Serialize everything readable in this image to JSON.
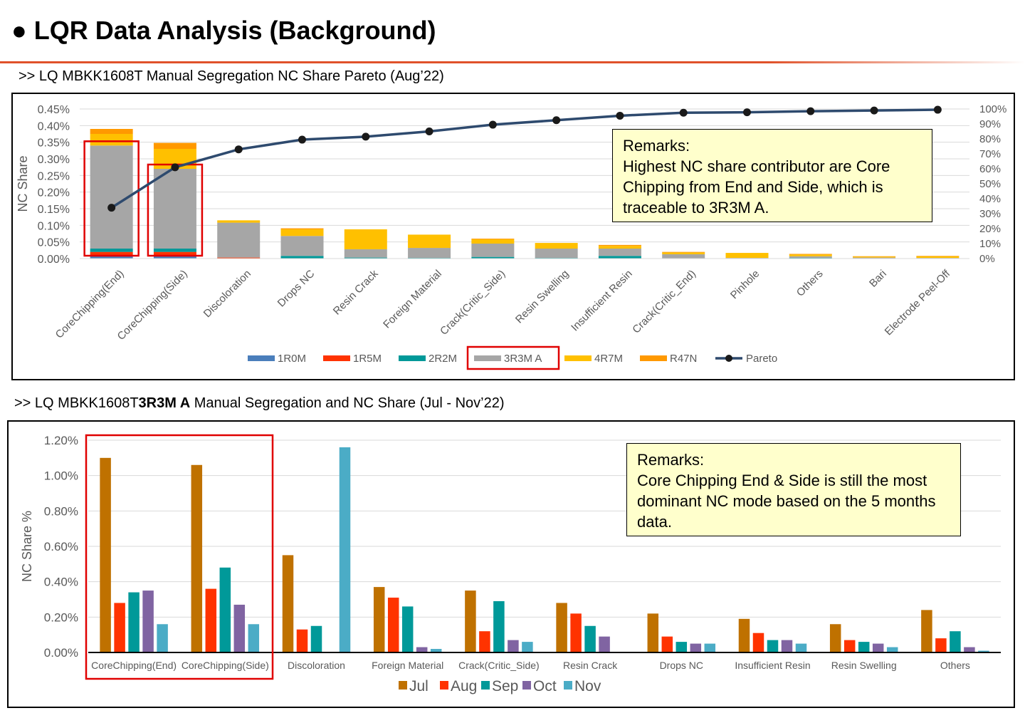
{
  "page": {
    "title": "● LQR Data Analysis (Background)",
    "subtitle1": ">> LQ MBKK1608T Manual Segregation NC Share Pareto (Aug’22)",
    "subtitle2_prefix": ">> LQ MBKK1608T",
    "subtitle2_bold": "3R3M A",
    "subtitle2_suffix": " Manual Segregation and NC Share (Jul - Nov’22)"
  },
  "chart_data": [
    {
      "type": "bar",
      "stacked": true,
      "categories": [
        "CoreChipping(End)",
        "CoreChipping(Side)",
        "Discoloration",
        "Drops NC",
        "Resin Crack",
        "Foreign Material",
        "Crack(Critic_Side)",
        "Resin Swelling",
        "Insufficient Resin",
        "Crack(Critic_End)",
        "Pinhole",
        "Others",
        "Bari",
        "Electrode Peel-Off"
      ],
      "series": [
        {
          "name": "1R0M",
          "color": "#4a7ebb",
          "values": [
            0.0001,
            0.0001,
            0,
            0,
            0,
            0,
            0,
            0,
            0,
            0,
            0,
            0,
            0,
            0
          ]
        },
        {
          "name": "1R5M",
          "color": "#ff3300",
          "values": [
            0.0001,
            0.0001,
            3e-05,
            0,
            0,
            0,
            0,
            0,
            0,
            0,
            0,
            0,
            0,
            0
          ]
        },
        {
          "name": "2R2M",
          "color": "#009999",
          "values": [
            0.0001,
            0.0001,
            0,
            8e-05,
            3e-05,
            2e-05,
            5e-05,
            2e-05,
            8e-05,
            1e-05,
            0,
            2e-05,
            0,
            0
          ]
        },
        {
          "name": "3R3M  A",
          "color": "#a6a6a6",
          "values": [
            0.0031,
            0.0024,
            0.00105,
            0.0006,
            0.00025,
            0.0003,
            0.0004,
            0.00028,
            0.00022,
            0.00012,
            2e-05,
            5e-05,
            3e-05,
            2e-05
          ]
        },
        {
          "name": "4R7M",
          "color": "#ffc000",
          "values": [
            0.00035,
            0.0006,
            7e-05,
            0.0002,
            0.0006,
            0.0004,
            0.00013,
            0.00017,
            8e-05,
            5e-05,
            0.00015,
            5e-05,
            3e-05,
            5e-05
          ]
        },
        {
          "name": "R47N",
          "color": "#ff9900",
          "values": [
            0.00015,
            0.00018,
            0,
            3e-05,
            0,
            0,
            2e-05,
            0,
            3e-05,
            2e-05,
            0,
            2e-05,
            1e-05,
            1e-05
          ]
        }
      ],
      "line_series": {
        "name": "Pareto",
        "color": "#2e4a6e",
        "axis": "right",
        "values": [
          0.34,
          0.61,
          0.73,
          0.795,
          0.815,
          0.85,
          0.895,
          0.925,
          0.955,
          0.975,
          0.978,
          0.985,
          0.99,
          0.995
        ]
      },
      "ylabel": "NC Share",
      "ylim": [
        0,
        0.0045
      ],
      "yticks": [
        "0.00%",
        "0.05%",
        "0.10%",
        "0.15%",
        "0.20%",
        "0.25%",
        "0.30%",
        "0.35%",
        "0.40%",
        "0.45%"
      ],
      "y2lim": [
        0,
        1
      ],
      "y2ticks": [
        "0%",
        "10%",
        "20%",
        "30%",
        "40%",
        "50%",
        "60%",
        "70%",
        "80%",
        "90%",
        "100%"
      ],
      "legend_position": "bottom",
      "highlight_legend": "3R3M  A",
      "highlight_categories": [
        0,
        1
      ],
      "remark": "Remarks:\nHighest NC share contributor are Core Chipping from End and Side, which is traceable to 3R3M A."
    },
    {
      "type": "bar",
      "categories": [
        "CoreChipping(End)",
        "CoreChipping(Side)",
        "Discoloration",
        "Foreign Material",
        "Crack(Critic_Side)",
        "Resin Crack",
        "Drops NC",
        "Insufficient Resin",
        "Resin Swelling",
        "Others"
      ],
      "series": [
        {
          "name": "Jul",
          "color": "#bf7100",
          "values": [
            0.011,
            0.0106,
            0.0055,
            0.0037,
            0.0035,
            0.0028,
            0.0022,
            0.0019,
            0.0016,
            0.0024
          ]
        },
        {
          "name": "Aug",
          "color": "#ff3300",
          "values": [
            0.0028,
            0.0036,
            0.0013,
            0.0031,
            0.0012,
            0.0022,
            0.0009,
            0.0011,
            0.0007,
            0.0008
          ]
        },
        {
          "name": "Sep",
          "color": "#009999",
          "values": [
            0.0034,
            0.0048,
            0.0015,
            0.0026,
            0.0029,
            0.0015,
            0.0006,
            0.0007,
            0.0006,
            0.0012
          ]
        },
        {
          "name": "Oct",
          "color": "#8064a2",
          "values": [
            0.0035,
            0.0027,
            0,
            0.0003,
            0.0007,
            0.0009,
            0.0005,
            0.0007,
            0.0005,
            0.0003
          ]
        },
        {
          "name": "Nov",
          "color": "#4bacc6",
          "values": [
            0.0016,
            0.0016,
            0.0116,
            0.0002,
            0.0006,
            0,
            0.0005,
            0.0005,
            0.0003,
            0.0001
          ]
        }
      ],
      "ylabel": "NC Share %",
      "ylim": [
        0,
        0.012
      ],
      "yticks": [
        "0.00%",
        "0.20%",
        "0.40%",
        "0.60%",
        "0.80%",
        "1.00%",
        "1.20%"
      ],
      "legend_position": "bottom",
      "highlight_categories": [
        0,
        1
      ],
      "remark": "Remarks:\nCore Chipping End & Side is still the most dominant NC mode based on the 5 months data."
    }
  ]
}
